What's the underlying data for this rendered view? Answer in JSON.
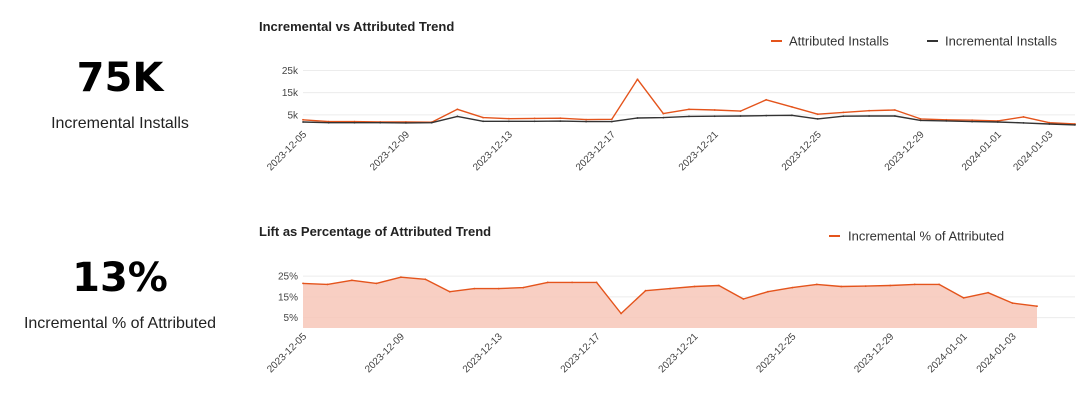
{
  "kpis": [
    {
      "value": "75K",
      "label": "Incremental Installs"
    },
    {
      "value": "13%",
      "label": "Incremental % of Attributed"
    }
  ],
  "chart_data": [
    {
      "type": "line",
      "title": "Incremental vs Attributed Trend",
      "legend_position": "top-right",
      "x": [
        "2023-12-05",
        "2023-12-06",
        "2023-12-07",
        "2023-12-08",
        "2023-12-09",
        "2023-12-10",
        "2023-12-11",
        "2023-12-12",
        "2023-12-13",
        "2023-12-14",
        "2023-12-15",
        "2023-12-16",
        "2023-12-17",
        "2023-12-18",
        "2023-12-19",
        "2023-12-20",
        "2023-12-21",
        "2023-12-22",
        "2023-12-23",
        "2023-12-24",
        "2023-12-25",
        "2023-12-26",
        "2023-12-27",
        "2023-12-28",
        "2023-12-29",
        "2023-12-30",
        "2023-12-31",
        "2024-01-01",
        "2024-01-02",
        "2024-01-03",
        "2024-01-04"
      ],
      "x_ticks": [
        "2023-12-05",
        "2023-12-09",
        "2023-12-13",
        "2023-12-17",
        "2023-12-21",
        "2023-12-25",
        "2023-12-29",
        "2024-01-01",
        "2024-01-03"
      ],
      "y_ticks": [
        {
          "value": 5000,
          "label": "5k"
        },
        {
          "value": 15000,
          "label": "15k"
        },
        {
          "value": 25000,
          "label": "25k"
        }
      ],
      "ylim": [
        0,
        27000
      ],
      "grid": true,
      "series": [
        {
          "name": "Attributed Installs",
          "color": "#e4541c",
          "values": [
            2800,
            2000,
            2000,
            1800,
            1800,
            1700,
            7500,
            3800,
            3300,
            3400,
            3500,
            2900,
            3000,
            21000,
            5600,
            7500,
            7200,
            6700,
            11800,
            8600,
            5300,
            6100,
            6900,
            7200,
            3200,
            2800,
            2600,
            2300,
            4100,
            1500,
            900
          ]
        },
        {
          "name": "Incremental Installs",
          "color": "#333333",
          "values": [
            1800,
            1500,
            1500,
            1500,
            1400,
            1500,
            4300,
            2100,
            2100,
            2100,
            2200,
            2000,
            2000,
            3600,
            3800,
            4300,
            4400,
            4500,
            4700,
            4800,
            3200,
            4400,
            4500,
            4500,
            2500,
            2300,
            2000,
            1800,
            1400,
            900,
            500
          ]
        }
      ]
    },
    {
      "type": "area",
      "title": "Lift as Percentage of Attributed Trend",
      "legend_position": "top-right",
      "x": [
        "2023-12-05",
        "2023-12-06",
        "2023-12-07",
        "2023-12-08",
        "2023-12-09",
        "2023-12-10",
        "2023-12-11",
        "2023-12-12",
        "2023-12-13",
        "2023-12-14",
        "2023-12-15",
        "2023-12-16",
        "2023-12-17",
        "2023-12-18",
        "2023-12-19",
        "2023-12-20",
        "2023-12-21",
        "2023-12-22",
        "2023-12-23",
        "2023-12-24",
        "2023-12-25",
        "2023-12-26",
        "2023-12-27",
        "2023-12-28",
        "2023-12-29",
        "2023-12-30",
        "2023-12-31",
        "2024-01-01",
        "2024-01-02",
        "2024-01-03",
        "2024-01-04"
      ],
      "x_ticks": [
        "2023-12-05",
        "2023-12-09",
        "2023-12-13",
        "2023-12-17",
        "2023-12-21",
        "2023-12-25",
        "2023-12-29",
        "2024-01-01",
        "2024-01-03"
      ],
      "y_ticks": [
        {
          "value": 5,
          "label": "5%"
        },
        {
          "value": 15,
          "label": "15%"
        },
        {
          "value": 25,
          "label": "25%"
        }
      ],
      "ylim": [
        0,
        27
      ],
      "grid": true,
      "series": [
        {
          "name": "Incremental % of Attributed",
          "color": "#e4541c",
          "fill": "#f7c7b8",
          "values": [
            21.5,
            21,
            23,
            21.5,
            24.5,
            23.5,
            17.5,
            19,
            19,
            19.5,
            22,
            22,
            22,
            7,
            18,
            19,
            20,
            20.5,
            14,
            17.5,
            19.5,
            21,
            20,
            20.2,
            20.5,
            21,
            21,
            14.5,
            17,
            12,
            10.5
          ]
        }
      ]
    }
  ]
}
